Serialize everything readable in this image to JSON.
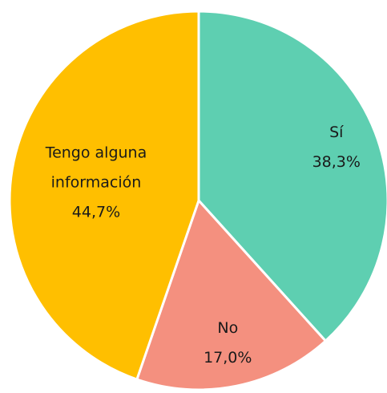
{
  "chart_data": {
    "type": "pie",
    "categories": [
      "Sí",
      "No",
      "Tengo alguna información"
    ],
    "values": [
      38.3,
      17.0,
      44.7
    ],
    "value_labels": [
      "38,3%",
      "17,0%",
      "44,7%"
    ],
    "colors": [
      "#5ecfb1",
      "#f4907f",
      "#ffbf00"
    ]
  }
}
